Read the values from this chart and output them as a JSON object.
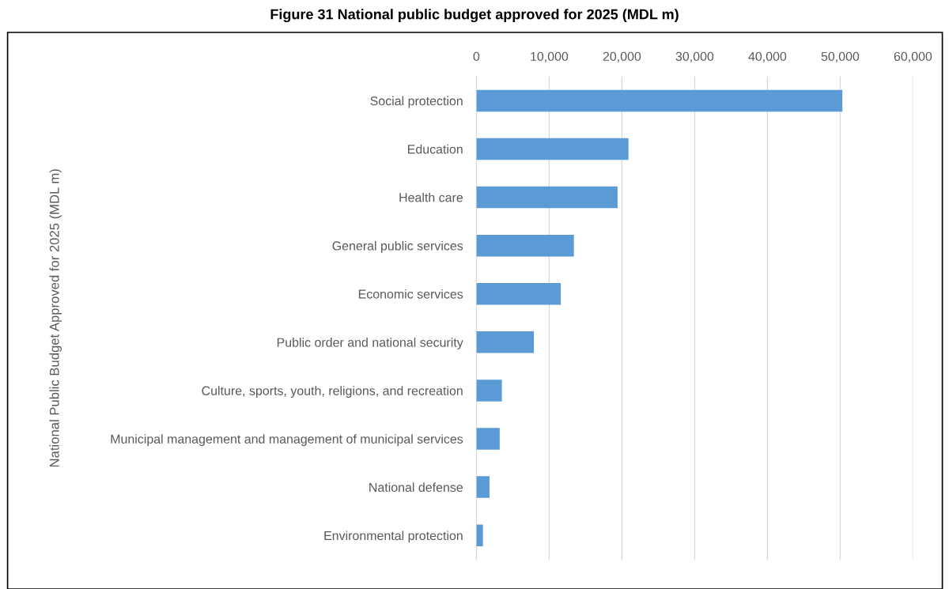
{
  "chart_data": {
    "type": "bar",
    "orientation": "horizontal",
    "title": "Figure 31 National public budget approved for 2025 (MDL m)",
    "ylabel": "National Public Budget Approved for 2025 (MDL m)",
    "categories": [
      "Social protection",
      "Education",
      "Health care",
      "General public services",
      "Economic services",
      "Public order and national security",
      "Culture, sports, youth, religions, and recreation",
      "Municipal management and management of municipal services",
      "National defense",
      "Environmental protection"
    ],
    "values": [
      50300,
      20900,
      19400,
      13400,
      11600,
      7900,
      3500,
      3200,
      1800,
      900
    ],
    "color": "#5b9bd5",
    "xlim": [
      0,
      60000
    ],
    "xticks": [
      {
        "value": 0,
        "label": "0"
      },
      {
        "value": 10000,
        "label": "10,000"
      },
      {
        "value": 20000,
        "label": "20,000"
      },
      {
        "value": 30000,
        "label": "30,000"
      },
      {
        "value": 40000,
        "label": "40,000"
      },
      {
        "value": 50000,
        "label": "50,000"
      },
      {
        "value": 60000,
        "label": "60,000"
      }
    ],
    "grid": "x"
  }
}
